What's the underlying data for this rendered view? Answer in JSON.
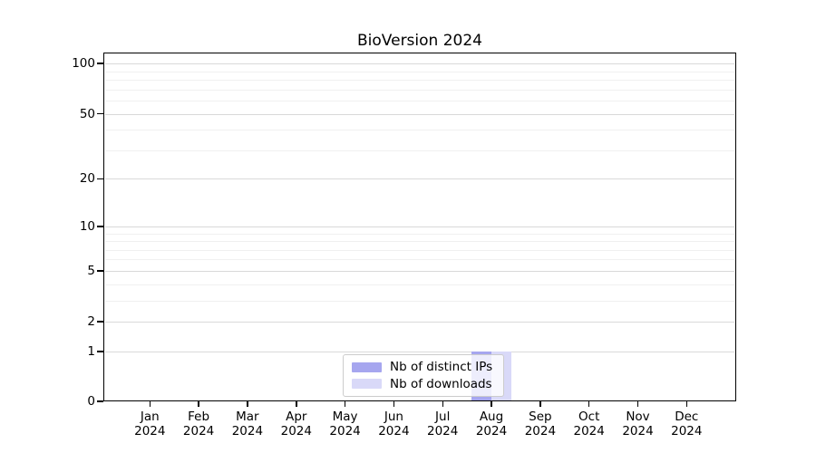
{
  "title": "BioVersion 2024",
  "chart_data": {
    "type": "bar",
    "title": "BioVersion 2024",
    "categories": [
      "Jan 2024",
      "Feb 2024",
      "Mar 2024",
      "Apr 2024",
      "May 2024",
      "Jun 2024",
      "Jul 2024",
      "Aug 2024",
      "Sep 2024",
      "Oct 2024",
      "Nov 2024",
      "Dec 2024"
    ],
    "series": [
      {
        "name": "Nb of distinct IPs",
        "color": "#a6a6ef",
        "values": [
          0,
          0,
          0,
          0,
          0,
          0,
          0,
          1,
          0,
          0,
          0,
          0
        ]
      },
      {
        "name": "Nb of downloads",
        "color": "#d9d9f8",
        "values": [
          0,
          0,
          0,
          0,
          0,
          0,
          0,
          1,
          0,
          0,
          0,
          0
        ]
      }
    ],
    "xlabel": "",
    "ylabel": "",
    "yscale": "log1p",
    "ylim": [
      0,
      116
    ],
    "ytick_values": [
      0,
      1,
      2,
      5,
      10,
      20,
      50,
      100
    ],
    "minor_ytick_values": [
      3,
      4,
      6,
      7,
      8,
      9,
      30,
      40,
      60,
      70,
      80,
      90
    ],
    "grid": true,
    "legend_position": "lower center"
  },
  "colors": {
    "distinct_ips": "#a6a6ef",
    "downloads": "#d9d9f8",
    "major_grid": "#d9d9d9",
    "minor_grid": "#f0f0f0",
    "spine": "#000000",
    "legend_border": "#cccccc"
  }
}
